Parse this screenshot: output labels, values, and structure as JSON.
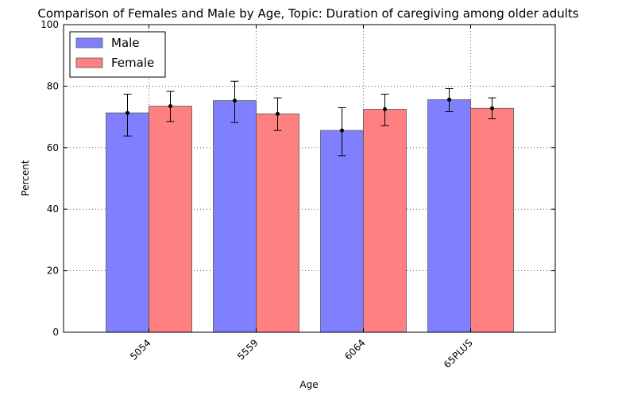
{
  "chart_data": {
    "type": "bar",
    "title": "Comparison of Females and Male by Age, Topic: Duration of caregiving among older adults",
    "xlabel": "Age",
    "ylabel": "Percent",
    "categories": [
      "5054",
      "5559",
      "6064",
      "65PLUS"
    ],
    "ylim": [
      0,
      100
    ],
    "yticks": [
      0,
      20,
      40,
      60,
      80,
      100
    ],
    "grid": true,
    "legend_position": "top-left",
    "series": [
      {
        "name": "Male",
        "color": "#8080ff",
        "values": [
          71.3,
          75.3,
          65.6,
          75.6
        ],
        "error_low": [
          63.8,
          68.2,
          57.4,
          71.7
        ],
        "error_high": [
          77.4,
          81.6,
          73.0,
          79.2
        ]
      },
      {
        "name": "Female",
        "color": "#ff8080",
        "values": [
          73.5,
          71.0,
          72.5,
          72.8
        ],
        "error_low": [
          68.5,
          65.6,
          67.2,
          69.4
        ],
        "error_high": [
          78.3,
          76.2,
          77.4,
          76.2
        ]
      }
    ]
  }
}
